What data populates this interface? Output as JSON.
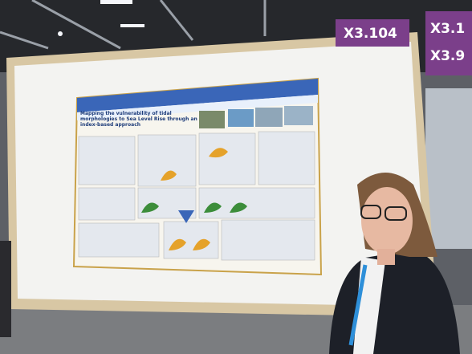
{
  "signs": [
    "X3.104",
    "X3.1",
    "X3.9"
  ],
  "poster": {
    "title": "Mapping the vulnerability of tidal morphologies to Sea Level Rise through an index-based approach"
  }
}
